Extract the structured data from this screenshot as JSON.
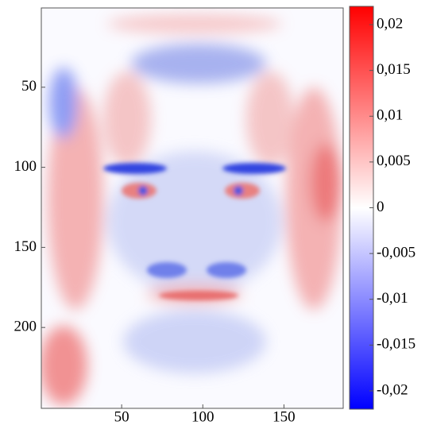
{
  "chart_data": {
    "type": "heatmap",
    "xlim": [
      0.5,
      186.5
    ],
    "xticks": [
      50,
      100,
      150
    ],
    "ylim": [
      0.5,
      250.5
    ],
    "yticks": [
      50,
      100,
      150,
      200
    ],
    "colormap": [
      "#0000ff",
      "#ffffff",
      "#ff0000"
    ],
    "clim": [
      -0.022,
      0.022
    ],
    "cticks": [
      {
        "value": 0.02,
        "label": "0,02"
      },
      {
        "value": 0.015,
        "label": "0,015"
      },
      {
        "value": 0.01,
        "label": "0,01"
      },
      {
        "value": 0.005,
        "label": "0,005"
      },
      0,
      {
        "value": -0.005,
        "label": "-0,005"
      },
      {
        "value": -0.01,
        "label": "-0,01"
      },
      {
        "value": -0.015,
        "label": "-0,015"
      },
      {
        "value": -0.02,
        "label": "-0,02"
      }
    ]
  }
}
